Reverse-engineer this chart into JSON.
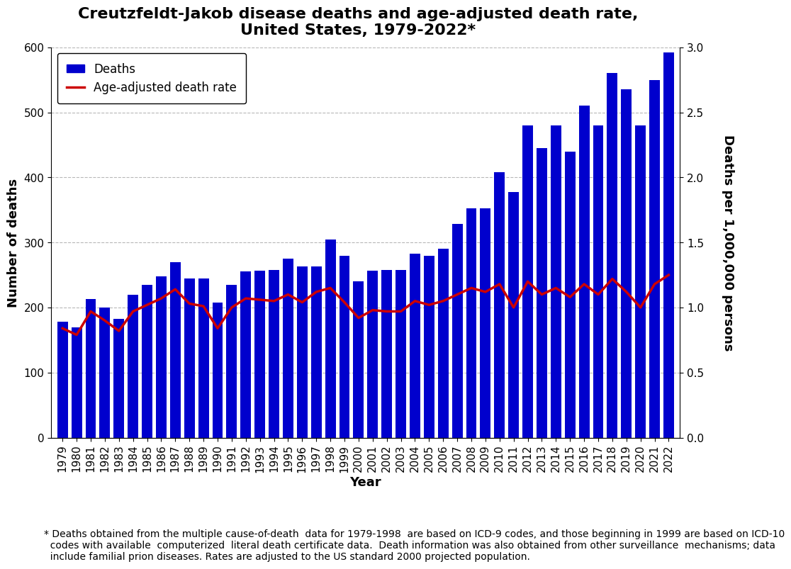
{
  "years": [
    1979,
    1980,
    1981,
    1982,
    1983,
    1984,
    1985,
    1986,
    1987,
    1988,
    1989,
    1990,
    1991,
    1992,
    1993,
    1994,
    1995,
    1996,
    1997,
    1998,
    1999,
    2000,
    2001,
    2002,
    2003,
    2004,
    2005,
    2006,
    2007,
    2008,
    2009,
    2010,
    2011,
    2012,
    2013,
    2014,
    2015,
    2016,
    2017,
    2018,
    2019,
    2020,
    2021,
    2022
  ],
  "deaths": [
    178,
    170,
    213,
    200,
    183,
    220,
    235,
    248,
    270,
    245,
    245,
    208,
    235,
    255,
    257,
    258,
    275,
    263,
    263,
    305,
    280,
    240,
    257,
    258,
    258,
    283,
    280,
    290,
    328,
    353,
    353,
    408,
    378,
    480,
    445,
    480,
    440,
    510,
    480,
    560,
    535,
    480,
    550,
    592
  ],
  "death_rate": [
    0.84,
    0.79,
    0.97,
    0.9,
    0.82,
    0.97,
    1.02,
    1.07,
    1.14,
    1.03,
    1.01,
    0.84,
    1.0,
    1.07,
    1.06,
    1.05,
    1.1,
    1.04,
    1.12,
    1.15,
    1.04,
    0.92,
    0.98,
    0.97,
    0.97,
    1.05,
    1.02,
    1.05,
    1.1,
    1.15,
    1.12,
    1.18,
    1.0,
    1.2,
    1.1,
    1.15,
    1.08,
    1.18,
    1.1,
    1.22,
    1.12,
    1.0,
    1.18,
    1.25
  ],
  "bar_color": "#0000CD",
  "line_color": "#CC0000",
  "title_line1": "Creutzfeldt-Jakob disease deaths and age-adjusted death rate,",
  "title_line2": "United States, 1979-2022*",
  "xlabel": "Year",
  "ylabel_left": "Number of deaths",
  "ylabel_right": "Deaths per 1,000,000 persons",
  "ylim_left": [
    0,
    600
  ],
  "ylim_right": [
    0,
    3
  ],
  "yticks_left": [
    0,
    100,
    200,
    300,
    400,
    500,
    600
  ],
  "yticks_right": [
    0,
    0.5,
    1.0,
    1.5,
    2.0,
    2.5,
    3.0
  ],
  "legend_labels": [
    "Deaths",
    "Age-adjusted death rate"
  ],
  "footnote_line1": "* Deaths obtained from the multiple cause-of-death  data for 1979-1998  are based on ICD-9 codes, and those beginning in 1999 are based on ICD-10",
  "footnote_line2": "  codes with available  computerized  literal death certificate data.  Death information was also obtained from other surveillance  mechanisms; data",
  "footnote_line3": "  include familial prion diseases. Rates are adjusted to the US standard 2000 projected population.",
  "title_fontsize": 16,
  "axis_label_fontsize": 13,
  "tick_fontsize": 11,
  "legend_fontsize": 12,
  "footnote_fontsize": 10,
  "background_color": "#FFFFFF",
  "grid_color": "#999999",
  "bar_width": 0.75
}
